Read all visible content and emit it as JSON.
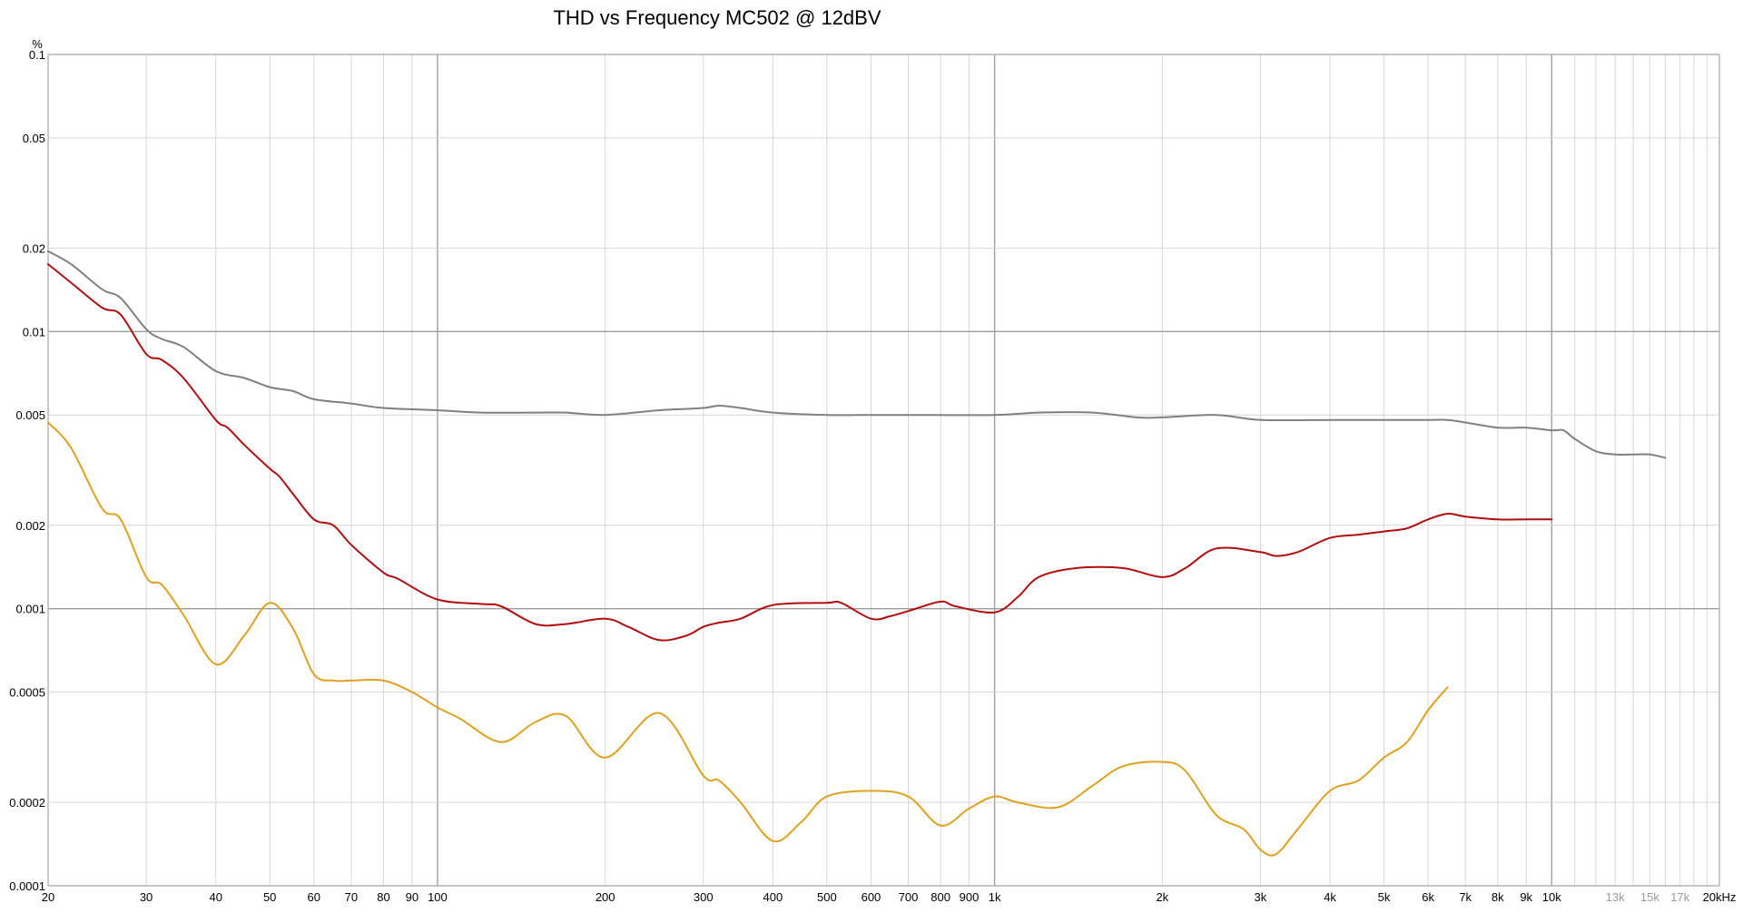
{
  "chart_data": {
    "type": "line",
    "title": "THD vs Frequency MC502 @ 12dBV",
    "y_unit": "%",
    "x_scale": "log",
    "y_scale": "log",
    "xlim": [
      20,
      20000
    ],
    "ylim": [
      0.0001,
      0.1
    ],
    "grid": true,
    "legend": "none",
    "x_ticks": [
      {
        "value": 20,
        "label": "20",
        "major": true
      },
      {
        "value": 30,
        "label": "30"
      },
      {
        "value": 40,
        "label": "40"
      },
      {
        "value": 50,
        "label": "50"
      },
      {
        "value": 60,
        "label": "60"
      },
      {
        "value": 70,
        "label": "70"
      },
      {
        "value": 80,
        "label": "80"
      },
      {
        "value": 90,
        "label": "90"
      },
      {
        "value": 100,
        "label": "100",
        "major": true
      },
      {
        "value": 200,
        "label": "200"
      },
      {
        "value": 300,
        "label": "300"
      },
      {
        "value": 400,
        "label": "400"
      },
      {
        "value": 500,
        "label": "500"
      },
      {
        "value": 600,
        "label": "600"
      },
      {
        "value": 700,
        "label": "700"
      },
      {
        "value": 800,
        "label": "800"
      },
      {
        "value": 900,
        "label": "900"
      },
      {
        "value": 1000,
        "label": "1k",
        "major": true
      },
      {
        "value": 2000,
        "label": "2k"
      },
      {
        "value": 3000,
        "label": "3k"
      },
      {
        "value": 4000,
        "label": "4k"
      },
      {
        "value": 5000,
        "label": "5k"
      },
      {
        "value": 6000,
        "label": "6k"
      },
      {
        "value": 7000,
        "label": "7k"
      },
      {
        "value": 8000,
        "label": "8k"
      },
      {
        "value": 9000,
        "label": "9k"
      },
      {
        "value": 10000,
        "label": "10k",
        "major": true
      },
      {
        "value": 11000,
        "label": ""
      },
      {
        "value": 12000,
        "label": ""
      },
      {
        "value": 13000,
        "label": "13k",
        "muted": true
      },
      {
        "value": 14000,
        "label": ""
      },
      {
        "value": 15000,
        "label": "15k",
        "muted": true
      },
      {
        "value": 16000,
        "label": ""
      },
      {
        "value": 17000,
        "label": "17k",
        "muted": true
      },
      {
        "value": 18000,
        "label": ""
      },
      {
        "value": 19000,
        "label": ""
      },
      {
        "value": 20000,
        "label": "20kHz",
        "major": true
      }
    ],
    "y_ticks": [
      {
        "value": 0.1,
        "label": "0.1",
        "major": true
      },
      {
        "value": 0.05,
        "label": "0.05"
      },
      {
        "value": 0.02,
        "label": "0.02"
      },
      {
        "value": 0.01,
        "label": "0.01",
        "major": true
      },
      {
        "value": 0.005,
        "label": "0.005"
      },
      {
        "value": 0.002,
        "label": "0.002"
      },
      {
        "value": 0.001,
        "label": "0.001",
        "major": true
      },
      {
        "value": 0.0005,
        "label": "0.0005"
      },
      {
        "value": 0.0002,
        "label": "0.0002"
      },
      {
        "value": 0.0001,
        "label": "0.0001",
        "major": true
      }
    ],
    "series": [
      {
        "color": "#808080",
        "x": [
          20,
          22,
          25,
          27,
          30,
          32,
          35,
          40,
          45,
          50,
          55,
          60,
          70,
          80,
          100,
          120,
          150,
          170,
          200,
          250,
          300,
          320,
          350,
          400,
          500,
          600,
          700,
          1000,
          1200,
          1500,
          1800,
          2000,
          2500,
          3000,
          4000,
          5000,
          5500,
          6000,
          6500,
          7000,
          8000,
          9000,
          10000,
          10500,
          11000,
          12000,
          13000,
          14000,
          15000,
          16000
        ],
        "y": [
          0.0195,
          0.0175,
          0.0142,
          0.0132,
          0.0102,
          0.0094,
          0.0088,
          0.0072,
          0.0068,
          0.0063,
          0.0061,
          0.0057,
          0.0055,
          0.0053,
          0.0052,
          0.0051,
          0.0051,
          0.0051,
          0.005,
          0.0052,
          0.0053,
          0.0054,
          0.0053,
          0.0051,
          0.005,
          0.005,
          0.005,
          0.005,
          0.0051,
          0.0051,
          0.0049,
          0.0049,
          0.005,
          0.0048,
          0.0048,
          0.0048,
          0.0048,
          0.0048,
          0.0048,
          0.0047,
          0.0045,
          0.0045,
          0.0044,
          0.0044,
          0.0041,
          0.0037,
          0.0036,
          0.0036,
          0.0036,
          0.0035
        ]
      },
      {
        "color": "#b00e0e",
        "x": [
          20,
          22,
          25,
          27,
          30,
          32,
          35,
          40,
          42,
          45,
          50,
          52,
          55,
          60,
          65,
          70,
          80,
          85,
          100,
          120,
          130,
          150,
          170,
          200,
          220,
          250,
          280,
          300,
          320,
          350,
          400,
          500,
          530,
          600,
          650,
          700,
          800,
          850,
          1000,
          1100,
          1200,
          1400,
          1700,
          2000,
          2200,
          2500,
          3000,
          3200,
          3500,
          4000,
          4500,
          5000,
          5500,
          6000,
          6500,
          7000,
          8000,
          9000,
          10000
        ],
        "y": [
          0.0175,
          0.015,
          0.0122,
          0.0115,
          0.0083,
          0.0079,
          0.0068,
          0.0048,
          0.0045,
          0.0039,
          0.0032,
          0.003,
          0.0026,
          0.0021,
          0.002,
          0.0017,
          0.00135,
          0.00128,
          0.00108,
          0.00104,
          0.00102,
          0.00088,
          0.00088,
          0.00092,
          0.00086,
          0.00077,
          0.0008,
          0.00086,
          0.00089,
          0.00092,
          0.00103,
          0.00105,
          0.00105,
          0.00092,
          0.00094,
          0.00098,
          0.00106,
          0.00102,
          0.00097,
          0.0011,
          0.0013,
          0.0014,
          0.0014,
          0.0013,
          0.0014,
          0.00165,
          0.0016,
          0.00155,
          0.0016,
          0.0018,
          0.00185,
          0.0019,
          0.00195,
          0.0021,
          0.0022,
          0.00215,
          0.0021,
          0.0021,
          0.0021
        ]
      },
      {
        "color": "#e0a020",
        "x": [
          20,
          22,
          25,
          27,
          30,
          32,
          35,
          40,
          45,
          50,
          55,
          60,
          65,
          70,
          80,
          90,
          100,
          110,
          130,
          150,
          170,
          200,
          250,
          300,
          320,
          350,
          400,
          450,
          500,
          600,
          700,
          800,
          900,
          1000,
          1100,
          1300,
          1500,
          1700,
          2000,
          2200,
          2500,
          2800,
          3000,
          3200,
          3500,
          4000,
          4500,
          5000,
          5500,
          6000,
          6500
        ],
        "y": [
          0.0047,
          0.0038,
          0.0023,
          0.0021,
          0.0013,
          0.00122,
          0.00095,
          0.00063,
          0.0008,
          0.00105,
          0.00085,
          0.00058,
          0.00055,
          0.00055,
          0.00055,
          0.0005,
          0.00044,
          0.0004,
          0.00033,
          0.00039,
          0.00041,
          0.00029,
          0.00042,
          0.00025,
          0.00024,
          0.0002,
          0.000145,
          0.00017,
          0.00021,
          0.00022,
          0.00021,
          0.000165,
          0.00019,
          0.00021,
          0.0002,
          0.000192,
          0.00023,
          0.00027,
          0.00028,
          0.00026,
          0.00018,
          0.00016,
          0.000135,
          0.00013,
          0.00016,
          0.00022,
          0.00024,
          0.00029,
          0.00033,
          0.00043,
          0.00052
        ]
      }
    ]
  }
}
